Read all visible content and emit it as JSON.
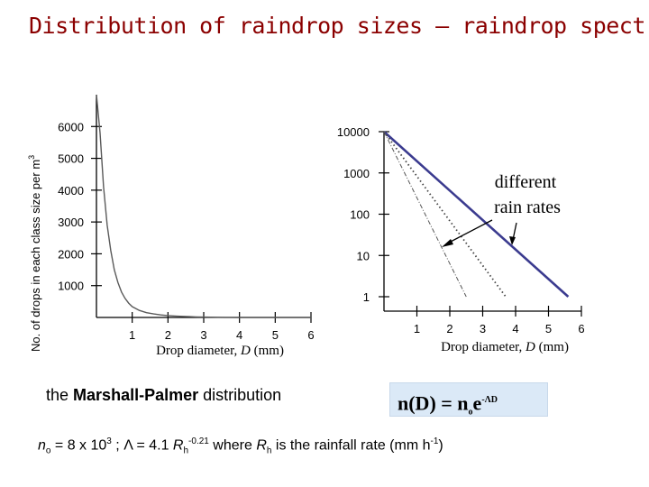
{
  "title": "Distribution of raindrop sizes – raindrop spectra",
  "chart_data": [
    {
      "type": "line",
      "title": "",
      "ylabel": "No. of drops in each class size per m",
      "ylabel_sup": "3",
      "xlabel": "Drop diameter,",
      "xlabel_var": "D",
      "xlabel_unit": "(mm)",
      "xlim": [
        0,
        6
      ],
      "ylim": [
        0,
        7000
      ],
      "x_ticks": [
        "1",
        "2",
        "3",
        "4",
        "5",
        "6"
      ],
      "y_ticks": [
        "1000",
        "2000",
        "3000",
        "4000",
        "5000",
        "6000"
      ],
      "series": [
        {
          "x": [
            0.0,
            0.1,
            0.2,
            0.3,
            0.4,
            0.5,
            0.6,
            0.7,
            0.8,
            0.9,
            1.0,
            1.2,
            1.4,
            1.6,
            1.8,
            2.0,
            2.2,
            2.4,
            2.6,
            2.8,
            3.0,
            3.2,
            3.4,
            3.6,
            4.0,
            5.0,
            6.0
          ],
          "y": [
            7000,
            5800,
            4100,
            2900,
            2100,
            1500,
            1100,
            800,
            600,
            450,
            340,
            220,
            150,
            110,
            80,
            60,
            45,
            35,
            25,
            18,
            12,
            8,
            5,
            3,
            0,
            0,
            0
          ]
        }
      ]
    },
    {
      "type": "line",
      "title": "",
      "ylabel": "",
      "xlabel": "Drop diameter,",
      "xlabel_var": "D",
      "xlabel_unit": "(mm)",
      "yscale": "log",
      "xlim": [
        0,
        6
      ],
      "ylim": [
        1,
        10000
      ],
      "x_ticks": [
        "1",
        "2",
        "3",
        "4",
        "5",
        "6"
      ],
      "y_ticks": [
        "1",
        "10",
        "100",
        "1000",
        "10000"
      ],
      "annotation": [
        "different",
        "rain rates"
      ],
      "series": [
        {
          "style": "solid",
          "x": [
            0,
            5.6
          ],
          "y": [
            10000,
            1
          ]
        },
        {
          "style": "dotted",
          "x": [
            0,
            3.7
          ],
          "y": [
            10000,
            1
          ]
        },
        {
          "style": "dashdot",
          "x": [
            0,
            2.5
          ],
          "y": [
            10000,
            1
          ]
        }
      ]
    }
  ],
  "marshall_palmer": {
    "prefix": "the",
    "name": "Marshall-Palmer",
    "suffix": "distribution",
    "formula_lhs": "n(D) = n",
    "formula_sub": "o",
    "formula_e": "e",
    "formula_sup": "-ΛD"
  },
  "params": {
    "n0_var": "n",
    "n0_sub": "o",
    "n0_value": " = 8 x 10",
    "n0_exp": "3",
    "lambda_text": " ; Λ = 4.1 ",
    "rh_var": "R",
    "rh_sub": "h",
    "rh_exp": "-0.21",
    "where_text": " where ",
    "rh_desc": " is the rainfall rate (mm h",
    "unit_exp": "-1",
    "close": ")"
  }
}
